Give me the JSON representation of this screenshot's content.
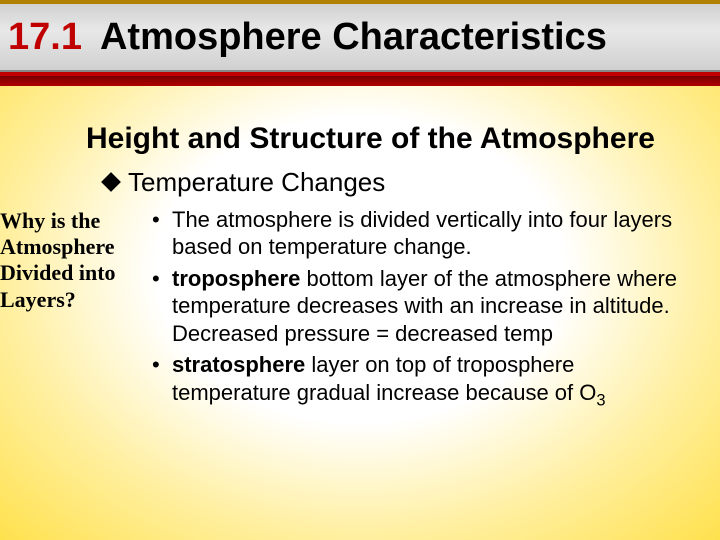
{
  "header": {
    "section_number": "17.1",
    "section_title": "Atmosphere Characteristics",
    "colors": {
      "number_color": "#c00000",
      "title_color": "#000000",
      "top_rule": "#b08000",
      "underline1": "#c00000",
      "underline2_top": "#7a0000",
      "underline2_bottom": "#b00000",
      "bg_gradient": [
        "#d0d0d0",
        "#e8e8e8",
        "#d0d0d0"
      ]
    },
    "fontsize": 38
  },
  "heading1": {
    "text": "Height and Structure of the Atmosphere",
    "fontsize": 30,
    "weight": "bold",
    "color": "#000000"
  },
  "heading2": {
    "text": "Temperature Changes",
    "fontsize": 26,
    "color": "#000000",
    "bullet_shape": "diamond",
    "bullet_color": "#000000"
  },
  "sidebar": {
    "text": "Why is the Atmosphere Divided into Layers?",
    "font_family": "Times New Roman",
    "fontsize": 22,
    "weight": "bold",
    "color": "#000000"
  },
  "bullets": {
    "fontsize": 22,
    "color": "#000000",
    "items": [
      {
        "plain": "The atmosphere is divided vertically into four layers based on temperature change."
      },
      {
        "keyword": "troposphere",
        "rest": " bottom layer of the atmosphere where temperature decreases with an increase in altitude. Decreased pressure = decreased temp"
      },
      {
        "keyword": "stratosphere",
        "rest_pre": " layer on top of troposphere temperature gradual increase  because of O",
        "sub": "3"
      }
    ]
  },
  "page_bg": {
    "gradient_inner": "#ffffff",
    "gradient_outer": "#ffe14d"
  }
}
